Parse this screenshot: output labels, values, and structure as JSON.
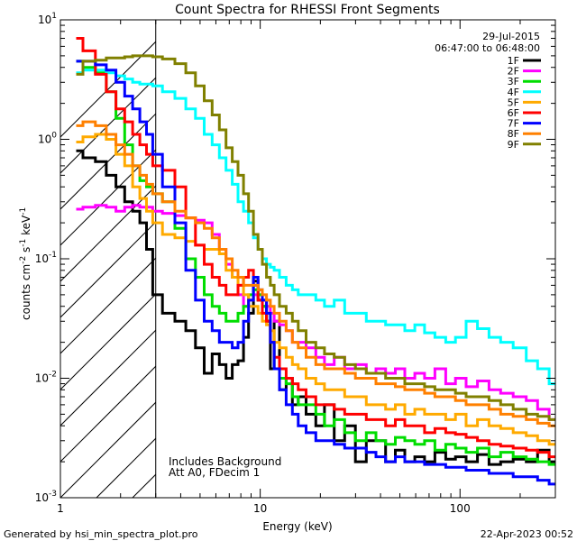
{
  "chart_data": {
    "type": "line",
    "title": "Count Spectra for RHESSI Front Segments",
    "xlabel": "Energy (keV)",
    "ylabel_main": "counts cm",
    "ylabel_exp1": "-2",
    "ylabel_mid": " s",
    "ylabel_exp2": "-1",
    "ylabel_end": " keV",
    "ylabel_exp3": "-1",
    "x_scale": "log",
    "y_scale": "log",
    "xlim": [
      1,
      300
    ],
    "ylim": [
      0.001,
      10
    ],
    "x_ticks": [
      {
        "value": 1,
        "label": "1"
      },
      {
        "value": 10,
        "label": "10"
      },
      {
        "value": 100,
        "label": "100"
      }
    ],
    "y_ticks": [
      {
        "value": 10,
        "base": "10",
        "exp": "1"
      },
      {
        "value": 1,
        "base": "10",
        "exp": "0"
      },
      {
        "value": 0.1,
        "base": "10",
        "exp": "-1"
      },
      {
        "value": 0.01,
        "base": "10",
        "exp": "-2"
      },
      {
        "value": 0.001,
        "base": "10",
        "exp": "-3"
      }
    ],
    "date": "29-Jul-2015",
    "time_range": "06:47:00 to 06:48:00",
    "annotation_lines": [
      "Includes Background",
      "Att A0, FDecim 1"
    ],
    "threshold_energy": 3,
    "footer_left": "Generated by hsi_min_spectra_plot.pro",
    "footer_right": "22-Apr-2023 00:52",
    "energies": [
      1.2,
      1.4,
      1.6,
      1.8,
      2,
      2.2,
      2.4,
      2.6,
      2.8,
      3,
      3.5,
      4,
      4.5,
      5,
      5.5,
      6,
      6.5,
      7,
      7.5,
      8,
      8.5,
      9,
      9.5,
      10,
      10.5,
      11,
      11.5,
      12,
      13,
      14,
      15,
      16,
      18,
      20,
      22,
      25,
      28,
      32,
      36,
      40,
      45,
      50,
      56,
      63,
      70,
      80,
      90,
      100,
      115,
      130,
      150,
      170,
      200,
      230,
      260,
      300
    ],
    "series": [
      {
        "name": "1F",
        "color": "#000000",
        "values": [
          0.8,
          0.7,
          0.65,
          0.5,
          0.4,
          0.3,
          0.25,
          0.2,
          0.12,
          0.05,
          0.035,
          0.03,
          0.025,
          0.018,
          0.011,
          0.016,
          0.013,
          0.01,
          0.013,
          0.014,
          0.022,
          0.035,
          0.065,
          0.045,
          0.04,
          0.03,
          0.012,
          0.03,
          0.008,
          0.01,
          0.006,
          0.007,
          0.005,
          0.004,
          0.006,
          0.003,
          0.004,
          0.002,
          0.003,
          0.003,
          0.002,
          0.0025,
          0.002,
          0.0022,
          0.002,
          0.0024,
          0.0021,
          0.0022,
          0.002,
          0.0023,
          0.0019,
          0.002,
          0.0021,
          0.002,
          0.0025,
          0.002
        ]
      },
      {
        "name": "2F",
        "color": "#ff00ff",
        "values": [
          0.26,
          0.27,
          0.28,
          0.27,
          0.25,
          0.27,
          0.28,
          0.27,
          0.27,
          0.25,
          0.24,
          0.23,
          0.22,
          0.21,
          0.2,
          0.16,
          0.12,
          0.09,
          0.07,
          0.05,
          0.04,
          0.045,
          0.05,
          0.05,
          0.045,
          0.04,
          0.035,
          0.03,
          0.028,
          0.025,
          0.02,
          0.02,
          0.018,
          0.015,
          0.013,
          0.015,
          0.012,
          0.013,
          0.011,
          0.012,
          0.011,
          0.012,
          0.01,
          0.011,
          0.01,
          0.012,
          0.009,
          0.01,
          0.0085,
          0.0095,
          0.008,
          0.0075,
          0.007,
          0.0065,
          0.0055,
          0.0045
        ]
      },
      {
        "name": "3F",
        "color": "#00dd00",
        "values": [
          4.5,
          4,
          3.6,
          2.5,
          1.5,
          0.9,
          0.6,
          0.45,
          0.4,
          0.35,
          0.3,
          0.18,
          0.1,
          0.07,
          0.05,
          0.04,
          0.035,
          0.03,
          0.03,
          0.035,
          0.04,
          0.05,
          0.055,
          0.05,
          0.04,
          0.03,
          0.02,
          0.012,
          0.01,
          0.009,
          0.007,
          0.006,
          0.006,
          0.005,
          0.004,
          0.0045,
          0.0035,
          0.003,
          0.0035,
          0.003,
          0.0028,
          0.0032,
          0.003,
          0.0028,
          0.003,
          0.0025,
          0.0028,
          0.0026,
          0.0024,
          0.0026,
          0.0022,
          0.0024,
          0.0022,
          0.0021,
          0.002,
          0.0019
        ]
      },
      {
        "name": "4F",
        "color": "#00ffff",
        "values": [
          3.6,
          3.8,
          3.8,
          3.6,
          3.4,
          3.2,
          3,
          2.9,
          2.9,
          2.8,
          2.5,
          2.2,
          1.8,
          1.5,
          1.1,
          0.9,
          0.7,
          0.55,
          0.42,
          0.3,
          0.25,
          0.2,
          0.15,
          0.12,
          0.1,
          0.09,
          0.085,
          0.08,
          0.07,
          0.06,
          0.055,
          0.05,
          0.05,
          0.045,
          0.04,
          0.045,
          0.035,
          0.035,
          0.03,
          0.03,
          0.028,
          0.028,
          0.025,
          0.028,
          0.024,
          0.022,
          0.02,
          0.022,
          0.03,
          0.026,
          0.022,
          0.02,
          0.018,
          0.014,
          0.012,
          0.009
        ]
      },
      {
        "name": "5F",
        "color": "#ffaa00",
        "values": [
          0.95,
          1.05,
          1.1,
          1.0,
          0.75,
          0.6,
          0.4,
          0.32,
          0.25,
          0.2,
          0.16,
          0.15,
          0.14,
          0.13,
          0.12,
          0.12,
          0.11,
          0.08,
          0.07,
          0.06,
          0.05,
          0.04,
          0.04,
          0.035,
          0.03,
          0.028,
          0.025,
          0.02,
          0.018,
          0.015,
          0.013,
          0.012,
          0.01,
          0.009,
          0.008,
          0.008,
          0.007,
          0.007,
          0.006,
          0.006,
          0.0055,
          0.006,
          0.005,
          0.0055,
          0.005,
          0.005,
          0.0045,
          0.005,
          0.004,
          0.0045,
          0.004,
          0.0038,
          0.0035,
          0.0033,
          0.003,
          0.0028
        ]
      },
      {
        "name": "6F",
        "color": "#ff0000",
        "values": [
          7,
          5.5,
          3.5,
          2.5,
          1.8,
          1.4,
          1.1,
          0.9,
          0.75,
          0.6,
          0.55,
          0.4,
          0.22,
          0.13,
          0.09,
          0.07,
          0.06,
          0.05,
          0.05,
          0.06,
          0.07,
          0.08,
          0.06,
          0.045,
          0.035,
          0.03,
          0.02,
          0.015,
          0.012,
          0.01,
          0.009,
          0.008,
          0.007,
          0.006,
          0.006,
          0.0055,
          0.005,
          0.005,
          0.0045,
          0.0045,
          0.004,
          0.0045,
          0.004,
          0.004,
          0.0035,
          0.0038,
          0.0035,
          0.0034,
          0.0032,
          0.003,
          0.0028,
          0.0027,
          0.0026,
          0.0025,
          0.0024,
          0.0022
        ]
      },
      {
        "name": "7F",
        "color": "#0000ff",
        "values": [
          4.5,
          4.5,
          4.2,
          3.8,
          3,
          2.3,
          1.8,
          1.4,
          1.1,
          0.75,
          0.4,
          0.2,
          0.08,
          0.045,
          0.03,
          0.025,
          0.02,
          0.02,
          0.018,
          0.02,
          0.03,
          0.045,
          0.07,
          0.055,
          0.045,
          0.035,
          0.02,
          0.012,
          0.008,
          0.006,
          0.005,
          0.004,
          0.0035,
          0.003,
          0.003,
          0.0028,
          0.0026,
          0.0026,
          0.0024,
          0.0022,
          0.002,
          0.0022,
          0.002,
          0.002,
          0.0019,
          0.0019,
          0.0018,
          0.0018,
          0.0017,
          0.0017,
          0.0016,
          0.0016,
          0.0015,
          0.0015,
          0.0014,
          0.0013
        ]
      },
      {
        "name": "8F",
        "color": "#ff8000",
        "values": [
          1.3,
          1.4,
          1.3,
          1.1,
          0.9,
          0.75,
          0.6,
          0.5,
          0.42,
          0.35,
          0.3,
          0.25,
          0.22,
          0.2,
          0.18,
          0.15,
          0.12,
          0.1,
          0.08,
          0.07,
          0.06,
          0.06,
          0.06,
          0.055,
          0.05,
          0.045,
          0.04,
          0.035,
          0.03,
          0.025,
          0.02,
          0.018,
          0.015,
          0.013,
          0.012,
          0.012,
          0.011,
          0.01,
          0.01,
          0.009,
          0.009,
          0.0085,
          0.008,
          0.008,
          0.0075,
          0.007,
          0.007,
          0.0065,
          0.006,
          0.006,
          0.0055,
          0.005,
          0.0048,
          0.0045,
          0.0042,
          0.004
        ]
      },
      {
        "name": "9F",
        "color": "#808000",
        "values": [
          3.5,
          4.5,
          4.6,
          4.8,
          4.8,
          4.9,
          5,
          5,
          5,
          4.9,
          4.7,
          4.3,
          3.6,
          2.8,
          2.1,
          1.6,
          1.2,
          0.85,
          0.65,
          0.5,
          0.35,
          0.25,
          0.16,
          0.12,
          0.09,
          0.07,
          0.06,
          0.05,
          0.04,
          0.035,
          0.03,
          0.025,
          0.02,
          0.018,
          0.016,
          0.015,
          0.013,
          0.012,
          0.011,
          0.011,
          0.01,
          0.01,
          0.009,
          0.009,
          0.0085,
          0.008,
          0.008,
          0.0075,
          0.007,
          0.007,
          0.0065,
          0.006,
          0.0055,
          0.005,
          0.0048,
          0.0045
        ]
      }
    ]
  }
}
